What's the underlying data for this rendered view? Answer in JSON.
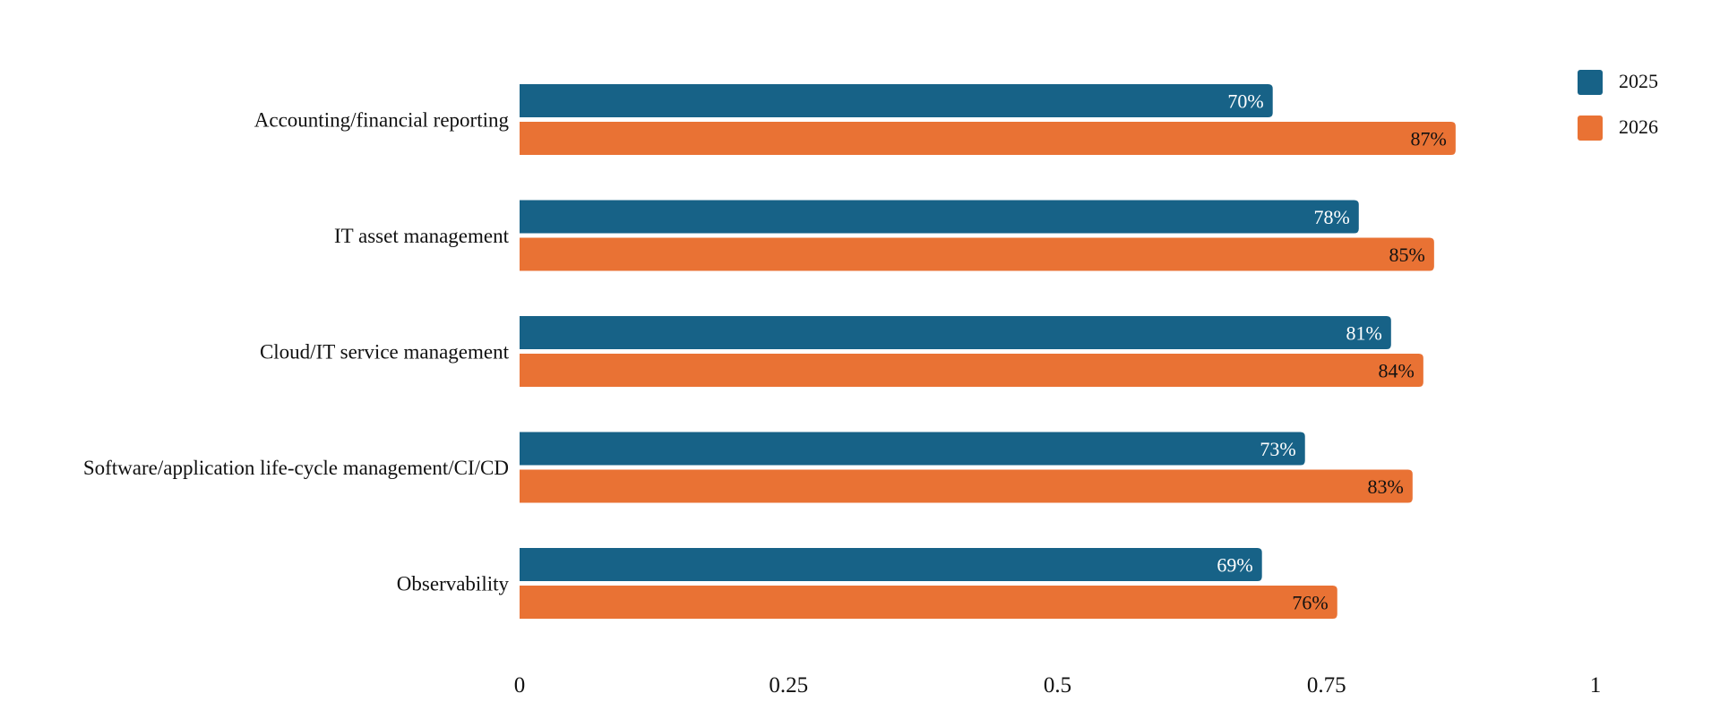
{
  "chart_data": {
    "type": "bar",
    "orientation": "horizontal",
    "categories": [
      "Accounting/financial reporting",
      "IT asset management",
      "Cloud/IT service management",
      "Software/application life-cycle management/CI/CD",
      "Observability"
    ],
    "series": [
      {
        "name": "2025",
        "color": "#176287",
        "values": [
          0.7,
          0.78,
          0.81,
          0.73,
          0.69
        ],
        "labels": [
          "70%",
          "78%",
          "81%",
          "73%",
          "69%"
        ],
        "label_color": "#ffffff"
      },
      {
        "name": "2026",
        "color": "#e97234",
        "values": [
          0.87,
          0.85,
          0.84,
          0.83,
          0.76
        ],
        "labels": [
          "87%",
          "85%",
          "84%",
          "83%",
          "76%"
        ],
        "label_color": "#111111"
      }
    ],
    "xlim": [
      0,
      1
    ],
    "xticks": [
      0,
      0.25,
      0.5,
      0.75,
      1
    ],
    "xtick_labels": [
      "0",
      "0.25",
      "0.5",
      "0.75",
      "1"
    ],
    "title": "",
    "xlabel": "",
    "ylabel": "",
    "grid": false,
    "legend_position": "top-right"
  }
}
